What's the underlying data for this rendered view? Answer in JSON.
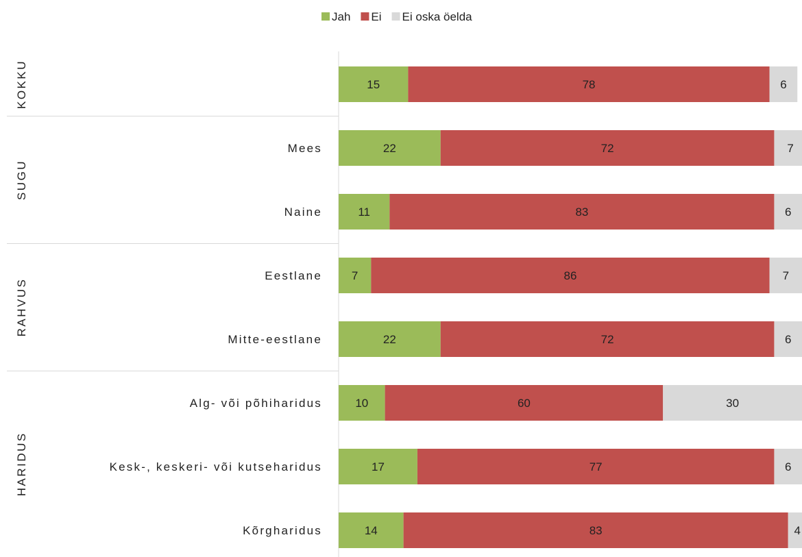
{
  "chart_data": {
    "type": "bar",
    "orientation": "horizontal",
    "stacked": true,
    "legend": {
      "position": "top"
    },
    "series": [
      {
        "name": "Jah",
        "color": "#9bbb59",
        "values": [
          15,
          22,
          11,
          7,
          22,
          10,
          17,
          14
        ]
      },
      {
        "name": "Ei",
        "color": "#c0504d",
        "values": [
          78,
          72,
          83,
          86,
          72,
          60,
          77,
          83
        ]
      },
      {
        "name": "Ei oska öelda",
        "color": "#d9d9d9",
        "values": [
          6,
          7,
          6,
          7,
          6,
          30,
          6,
          4
        ]
      }
    ],
    "rows": [
      {
        "group": 0,
        "label": ""
      },
      {
        "group": 1,
        "label": "Mees"
      },
      {
        "group": 1,
        "label": "Naine"
      },
      {
        "group": 2,
        "label": "Eestlane"
      },
      {
        "group": 2,
        "label": "Mitte-eestlane"
      },
      {
        "group": 3,
        "label": "Alg- või põhiharidus"
      },
      {
        "group": 3,
        "label": "Kesk-, keskeri- või kutseharidus"
      },
      {
        "group": 3,
        "label": "Kõrgharidus"
      }
    ],
    "groups": [
      "KOKKU",
      "SUGU",
      "RAHVUS",
      "HARIDUS"
    ],
    "xlim": [
      0,
      100
    ],
    "grid": false
  }
}
